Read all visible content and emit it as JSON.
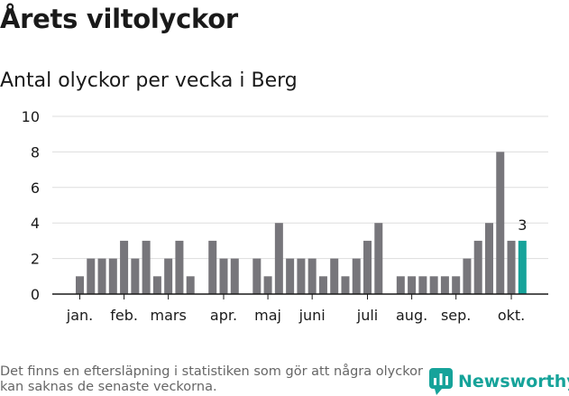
{
  "header": {
    "title": "Årets viltolyckor",
    "subtitle": "Antal olyckor per vecka i Berg"
  },
  "footer": {
    "note": "Det finns en eftersläpning i statistiken som gör att några olyckor kan saknas de senaste veckorna.",
    "brand": "Newsworthy"
  },
  "colors": {
    "bar": "#77767b",
    "highlight": "#16a39a",
    "grid": "#dddddd",
    "axis": "#1a1a1a"
  },
  "chart_data": {
    "type": "bar",
    "title": "Antal olyckor per vecka i Berg",
    "xlabel": "",
    "ylabel": "",
    "ylim": [
      0,
      10
    ],
    "yticks": [
      0,
      2,
      4,
      6,
      8,
      10
    ],
    "weeks": [
      1,
      2,
      3,
      4,
      5,
      6,
      7,
      8,
      9,
      10,
      11,
      12,
      13,
      14,
      15,
      16,
      17,
      18,
      19,
      20,
      21,
      22,
      23,
      24,
      25,
      26,
      27,
      28,
      29,
      30,
      31,
      32,
      33,
      34,
      35,
      36,
      37,
      38,
      39,
      40,
      41,
      42
    ],
    "values": [
      1,
      2,
      2,
      2,
      3,
      2,
      3,
      1,
      2,
      3,
      1,
      0,
      3,
      2,
      2,
      0,
      2,
      1,
      4,
      2,
      2,
      2,
      1,
      2,
      1,
      2,
      3,
      4,
      0,
      1,
      1,
      1,
      1,
      1,
      1,
      2,
      3,
      4,
      8,
      3,
      3,
      null
    ],
    "highlight_index": 40,
    "highlight_label": "3",
    "month_labels": [
      {
        "label": "jan.",
        "week": 1
      },
      {
        "label": "feb.",
        "week": 5
      },
      {
        "label": "mars",
        "week": 9
      },
      {
        "label": "apr.",
        "week": 14
      },
      {
        "label": "maj",
        "week": 18
      },
      {
        "label": "juni",
        "week": 22
      },
      {
        "label": "juli",
        "week": 27
      },
      {
        "label": "aug.",
        "week": 31
      },
      {
        "label": "sep.",
        "week": 35
      },
      {
        "label": "okt.",
        "week": 40
      }
    ]
  }
}
